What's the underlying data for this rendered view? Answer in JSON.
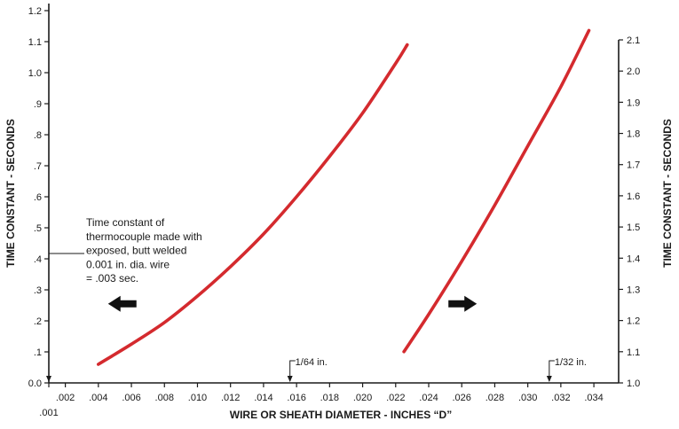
{
  "chart_data": {
    "type": "line",
    "title": "",
    "xlabel": "WIRE OR SHEATH DIAMETER - INCHES “D”",
    "ylabel_left": "TIME CONSTANT - SECONDS",
    "ylabel_right": "TIME CONSTANT - SECONDS",
    "xlim": [
      0.001,
      0.0355
    ],
    "ylim_left": [
      0,
      1.2
    ],
    "ylim_right": [
      1.0,
      2.1
    ],
    "x_ticks": [
      {
        "value": 0.001,
        "label": ".001"
      },
      {
        "value": 0.002,
        "label": ".002"
      },
      {
        "value": 0.004,
        "label": ".004"
      },
      {
        "value": 0.006,
        "label": ".006"
      },
      {
        "value": 0.008,
        "label": ".008"
      },
      {
        "value": 0.01,
        "label": ".010"
      },
      {
        "value": 0.012,
        "label": ".012"
      },
      {
        "value": 0.014,
        "label": ".014"
      },
      {
        "value": 0.016,
        "label": ".016"
      },
      {
        "value": 0.018,
        "label": ".018"
      },
      {
        "value": 0.02,
        "label": ".020"
      },
      {
        "value": 0.022,
        "label": ".022"
      },
      {
        "value": 0.024,
        "label": ".024"
      },
      {
        "value": 0.026,
        "label": ".026"
      },
      {
        "value": 0.028,
        "label": ".028"
      },
      {
        "value": 0.03,
        "label": ".030"
      },
      {
        "value": 0.032,
        "label": ".032"
      },
      {
        "value": 0.034,
        "label": ".034"
      }
    ],
    "y_ticks_left": [
      {
        "value": 0.0,
        "label": "0.0"
      },
      {
        "value": 0.1,
        "label": ".1"
      },
      {
        "value": 0.2,
        "label": ".2"
      },
      {
        "value": 0.3,
        "label": ".3"
      },
      {
        "value": 0.4,
        "label": ".4"
      },
      {
        "value": 0.5,
        "label": ".5"
      },
      {
        "value": 0.6,
        "label": ".6"
      },
      {
        "value": 0.7,
        "label": ".7"
      },
      {
        "value": 0.8,
        "label": ".8"
      },
      {
        "value": 0.9,
        "label": ".9"
      },
      {
        "value": 1.0,
        "label": "1.0"
      },
      {
        "value": 1.1,
        "label": "1.1"
      },
      {
        "value": 1.2,
        "label": "1.2"
      }
    ],
    "y_ticks_right": [
      {
        "value": 1.0,
        "label": "1.0"
      },
      {
        "value": 1.1,
        "label": "1.1"
      },
      {
        "value": 1.2,
        "label": "1.2"
      },
      {
        "value": 1.3,
        "label": "1.3"
      },
      {
        "value": 1.4,
        "label": "1.4"
      },
      {
        "value": 1.5,
        "label": "1.5"
      },
      {
        "value": 1.6,
        "label": "1.6"
      },
      {
        "value": 1.7,
        "label": "1.7"
      },
      {
        "value": 1.8,
        "label": "1.8"
      },
      {
        "value": 1.9,
        "label": "1.9"
      },
      {
        "value": 2.0,
        "label": "2.0"
      },
      {
        "value": 2.1,
        "label": "2.1"
      }
    ],
    "series": [
      {
        "axis": "left",
        "color": "#d42a2e",
        "x": [
          0.004,
          0.006,
          0.008,
          0.01,
          0.012,
          0.014,
          0.016,
          0.018,
          0.02,
          0.022,
          0.0227
        ],
        "y": [
          0.06,
          0.125,
          0.195,
          0.28,
          0.375,
          0.48,
          0.6,
          0.73,
          0.87,
          1.03,
          1.09
        ]
      },
      {
        "axis": "right",
        "color": "#d42a2e",
        "x": [
          0.0225,
          0.024,
          0.026,
          0.028,
          0.03,
          0.032,
          0.0337
        ],
        "y": [
          1.1,
          1.22,
          1.39,
          1.57,
          1.76,
          1.95,
          2.13
        ]
      }
    ],
    "annotations": {
      "note_lines": [
        "Time constant of",
        "thermocouple made with",
        "exposed, butt welded",
        "0.001 in. dia. wire",
        "= .003 sec."
      ],
      "note_x": 0.001,
      "marker_1_64": {
        "label": "1/64 in.",
        "x": 0.0156
      },
      "marker_1_32": {
        "label": "1/32 in.",
        "x": 0.0313
      },
      "arrow_left_axis": {
        "points": "left",
        "x": 0.0055,
        "y": 0.255
      },
      "arrow_right_axis": {
        "points": "right",
        "x": 0.026,
        "y": 0.255
      }
    },
    "grid": false,
    "legend": "none"
  }
}
